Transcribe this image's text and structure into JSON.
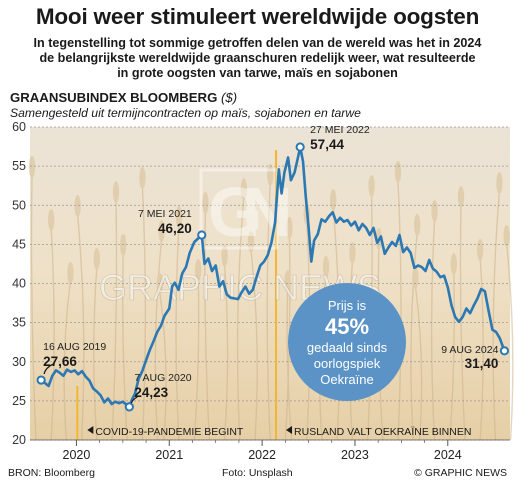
{
  "headline": "Mooi weer stimuleert wereldwijde oogsten",
  "subtitle_lines": [
    "In tegenstelling tot sommige getroffen delen van de wereld was het in 2024",
    "de belangrijkste wereldwijde graanschuren redelijk weer, wat resulteerde",
    "in grote oogsten van tarwe, maïs en sojabonen"
  ],
  "chart_heading": "GRAANSUBINDEX BLOOMBERG",
  "chart_unit": "($)",
  "chart_subtitle": "Samengesteld uit termijncontracten op maïs, sojabonen en tarwe",
  "watermark": "GRAPHIC NEWS",
  "badge": {
    "line1": "Prijs is",
    "value": "45%",
    "line2": "gedaald sinds",
    "line3": "oorlogspiek",
    "line4": "Oekraïne"
  },
  "footer": {
    "source": "BRON: Bloomberg",
    "photo": "Foto: Unsplash",
    "credit": "© GRAPHIC NEWS"
  },
  "colors": {
    "line": "#2b78b3",
    "badge": "#5b93c7",
    "event": "#f2b632",
    "background": "#f3e9da"
  },
  "chart_data": {
    "type": "line",
    "title": "GRAANSUBINDEX BLOOMBERG",
    "unit": "($)",
    "ylim": [
      20,
      60
    ],
    "yticks": [
      20,
      25,
      30,
      35,
      40,
      45,
      50,
      55,
      60
    ],
    "xlim": [
      2019.5,
      2024.67
    ],
    "xticks": [
      {
        "label": "2020",
        "x": 2020.0
      },
      {
        "label": "2021",
        "x": 2021.0
      },
      {
        "label": "2022",
        "x": 2022.0
      },
      {
        "label": "2023",
        "x": 2023.0
      },
      {
        "label": "2024",
        "x": 2024.0
      }
    ],
    "grid": true,
    "series": [
      {
        "points": [
          [
            2019.62,
            27.66
          ],
          [
            2019.67,
            27.2
          ],
          [
            2019.7,
            26.9
          ],
          [
            2019.74,
            28.2
          ],
          [
            2019.78,
            28.9
          ],
          [
            2019.82,
            28.6
          ],
          [
            2019.86,
            28.2
          ],
          [
            2019.9,
            29.0
          ],
          [
            2019.94,
            28.7
          ],
          [
            2019.98,
            28.9
          ],
          [
            2020.02,
            28.4
          ],
          [
            2020.06,
            28.8
          ],
          [
            2020.1,
            28.1
          ],
          [
            2020.14,
            27.6
          ],
          [
            2020.18,
            26.6
          ],
          [
            2020.22,
            26.2
          ],
          [
            2020.26,
            25.7
          ],
          [
            2020.3,
            24.8
          ],
          [
            2020.34,
            25.3
          ],
          [
            2020.38,
            24.6
          ],
          [
            2020.42,
            24.9
          ],
          [
            2020.46,
            24.7
          ],
          [
            2020.5,
            24.9
          ],
          [
            2020.54,
            24.5
          ],
          [
            2020.57,
            24.23
          ],
          [
            2020.6,
            25.2
          ],
          [
            2020.63,
            25.9
          ],
          [
            2020.67,
            27.8
          ],
          [
            2020.71,
            28.8
          ],
          [
            2020.75,
            30.2
          ],
          [
            2020.79,
            31.5
          ],
          [
            2020.83,
            32.6
          ],
          [
            2020.87,
            33.8
          ],
          [
            2020.91,
            34.6
          ],
          [
            2020.95,
            35.9
          ],
          [
            2021.0,
            36.8
          ],
          [
            2021.03,
            39.6
          ],
          [
            2021.06,
            40.1
          ],
          [
            2021.1,
            39.2
          ],
          [
            2021.14,
            41.3
          ],
          [
            2021.18,
            42.1
          ],
          [
            2021.22,
            43.9
          ],
          [
            2021.27,
            45.3
          ],
          [
            2021.35,
            46.2
          ],
          [
            2021.38,
            42.5
          ],
          [
            2021.42,
            43.2
          ],
          [
            2021.46,
            41.6
          ],
          [
            2021.5,
            42.3
          ],
          [
            2021.54,
            39.6
          ],
          [
            2021.58,
            40.3
          ],
          [
            2021.62,
            38.6
          ],
          [
            2021.66,
            38.2
          ],
          [
            2021.7,
            38.1
          ],
          [
            2021.74,
            38.0
          ],
          [
            2021.78,
            38.9
          ],
          [
            2021.82,
            39.6
          ],
          [
            2021.86,
            38.7
          ],
          [
            2021.9,
            39.2
          ],
          [
            2021.94,
            40.8
          ],
          [
            2021.98,
            42.3
          ],
          [
            2022.02,
            42.8
          ],
          [
            2022.06,
            43.6
          ],
          [
            2022.1,
            45.2
          ],
          [
            2022.14,
            47.8
          ],
          [
            2022.18,
            54.6
          ],
          [
            2022.21,
            51.5
          ],
          [
            2022.24,
            54.2
          ],
          [
            2022.28,
            56.1
          ],
          [
            2022.31,
            53.2
          ],
          [
            2022.35,
            54.2
          ],
          [
            2022.39,
            56.3
          ],
          [
            2022.41,
            57.44
          ],
          [
            2022.44,
            55.6
          ],
          [
            2022.47,
            51.2
          ],
          [
            2022.5,
            47.3
          ],
          [
            2022.53,
            42.8
          ],
          [
            2022.56,
            45.5
          ],
          [
            2022.6,
            46.3
          ],
          [
            2022.64,
            48.2
          ],
          [
            2022.68,
            47.9
          ],
          [
            2022.72,
            48.6
          ],
          [
            2022.76,
            49.1
          ],
          [
            2022.8,
            47.8
          ],
          [
            2022.84,
            48.4
          ],
          [
            2022.88,
            47.9
          ],
          [
            2022.92,
            48.1
          ],
          [
            2022.96,
            47.4
          ],
          [
            2023.0,
            47.9
          ],
          [
            2023.04,
            46.8
          ],
          [
            2023.08,
            47.6
          ],
          [
            2023.12,
            47.1
          ],
          [
            2023.16,
            46.2
          ],
          [
            2023.2,
            47.1
          ],
          [
            2023.24,
            45.2
          ],
          [
            2023.28,
            46.0
          ],
          [
            2023.32,
            43.8
          ],
          [
            2023.36,
            44.6
          ],
          [
            2023.4,
            45.3
          ],
          [
            2023.44,
            44.8
          ],
          [
            2023.48,
            46.2
          ],
          [
            2023.52,
            44.0
          ],
          [
            2023.56,
            44.6
          ],
          [
            2023.6,
            43.9
          ],
          [
            2023.64,
            42.0
          ],
          [
            2023.68,
            42.3
          ],
          [
            2023.72,
            42.1
          ],
          [
            2023.76,
            41.6
          ],
          [
            2023.8,
            43.0
          ],
          [
            2023.84,
            41.9
          ],
          [
            2023.88,
            41.5
          ],
          [
            2023.92,
            40.8
          ],
          [
            2023.96,
            41.0
          ],
          [
            2024.0,
            39.5
          ],
          [
            2024.04,
            37.2
          ],
          [
            2024.08,
            35.7
          ],
          [
            2024.12,
            35.1
          ],
          [
            2024.16,
            35.7
          ],
          [
            2024.2,
            36.8
          ],
          [
            2024.24,
            36.2
          ],
          [
            2024.28,
            37.2
          ],
          [
            2024.32,
            38.1
          ],
          [
            2024.36,
            39.3
          ],
          [
            2024.4,
            39.0
          ],
          [
            2024.44,
            36.5
          ],
          [
            2024.48,
            34.1
          ],
          [
            2024.52,
            33.8
          ],
          [
            2024.56,
            33.0
          ],
          [
            2024.61,
            31.4
          ]
        ]
      }
    ],
    "annotations": [
      {
        "date": "16 AUG 2019",
        "value": "27,66",
        "x": 2019.62,
        "y": 27.66
      },
      {
        "date": "7 AUG 2020",
        "value": "24,23",
        "x": 2020.57,
        "y": 24.23
      },
      {
        "date": "7 MEI 2021",
        "value": "46,20",
        "x": 2021.35,
        "y": 46.2
      },
      {
        "date": "27 MEI 2022",
        "value": "57,44",
        "x": 2022.41,
        "y": 57.44
      },
      {
        "date": "9 AUG 2024",
        "value": "31,40",
        "x": 2024.61,
        "y": 31.4
      }
    ],
    "events": [
      {
        "label": "COVID-19-PANDEMIE BEGINT",
        "x": 2020.01
      },
      {
        "label": "RUSLAND VALT OEKRAÏNE BINNEN",
        "x": 2022.15
      }
    ]
  }
}
